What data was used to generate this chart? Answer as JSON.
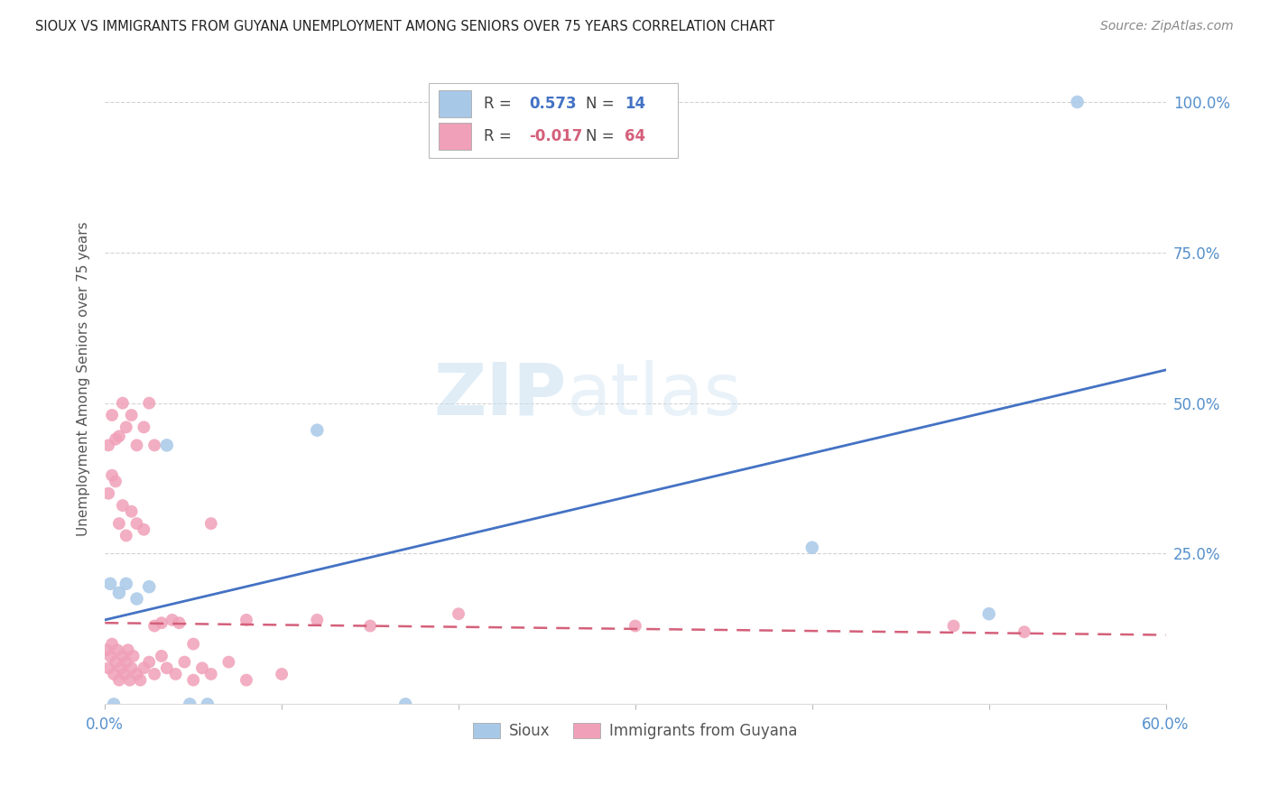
{
  "title": "SIOUX VS IMMIGRANTS FROM GUYANA UNEMPLOYMENT AMONG SENIORS OVER 75 YEARS CORRELATION CHART",
  "source": "Source: ZipAtlas.com",
  "ylabel": "Unemployment Among Seniors over 75 years",
  "xlabel": "",
  "watermark_zip": "ZIP",
  "watermark_atlas": "atlas",
  "xlim": [
    0.0,
    0.6
  ],
  "ylim": [
    0.0,
    1.08
  ],
  "xtick_vals": [
    0.0,
    0.1,
    0.2,
    0.3,
    0.4,
    0.5,
    0.6
  ],
  "xtick_labels": [
    "0.0%",
    "",
    "",
    "",
    "",
    "",
    "60.0%"
  ],
  "ytick_vals": [
    0.0,
    0.25,
    0.5,
    0.75,
    1.0
  ],
  "ytick_labels": [
    "",
    "25.0%",
    "50.0%",
    "75.0%",
    "100.0%"
  ],
  "sioux_R": 0.573,
  "sioux_N": 14,
  "guyana_R": -0.017,
  "guyana_N": 64,
  "sioux_color": "#A8C8E8",
  "guyana_color": "#F0A0B8",
  "line_sioux_color": "#4472C4",
  "line_guyana_color": "#D4607A",
  "sioux_line_start_y": 0.14,
  "sioux_line_end_y": 0.555,
  "guyana_line_start_y": 0.135,
  "guyana_line_end_y": 0.115,
  "background_color": "#FFFFFF",
  "grid_color": "#C8C8C8",
  "tick_color": "#5590CC",
  "figsize": [
    14.06,
    8.92
  ],
  "dpi": 100,
  "sioux_pts_x": [
    0.003,
    0.008,
    0.012,
    0.018,
    0.025,
    0.035,
    0.048,
    0.058,
    0.12,
    0.17,
    0.4,
    0.5,
    0.005,
    0.55
  ],
  "sioux_pts_y": [
    0.2,
    0.185,
    0.2,
    0.175,
    0.195,
    0.43,
    0.0,
    0.0,
    0.455,
    0.0,
    0.26,
    0.15,
    0.0,
    1.0
  ],
  "guyana_high_x": [
    0.002,
    0.004,
    0.006,
    0.008,
    0.01,
    0.012,
    0.015,
    0.018,
    0.022,
    0.025,
    0.028
  ],
  "guyana_high_y": [
    0.43,
    0.48,
    0.44,
    0.445,
    0.5,
    0.46,
    0.48,
    0.43,
    0.46,
    0.5,
    0.43
  ],
  "guyana_mid_x": [
    0.002,
    0.004,
    0.006,
    0.008,
    0.01,
    0.012,
    0.015,
    0.018,
    0.022,
    0.028,
    0.032,
    0.038,
    0.042,
    0.05,
    0.06,
    0.08,
    0.12,
    0.15,
    0.2,
    0.3,
    0.48,
    0.52
  ],
  "guyana_mid_y": [
    0.35,
    0.38,
    0.37,
    0.3,
    0.33,
    0.28,
    0.32,
    0.3,
    0.29,
    0.13,
    0.135,
    0.14,
    0.135,
    0.1,
    0.3,
    0.14,
    0.14,
    0.13,
    0.15,
    0.13,
    0.13,
    0.12
  ],
  "guyana_low_x": [
    0.001,
    0.002,
    0.003,
    0.004,
    0.005,
    0.006,
    0.007,
    0.008,
    0.009,
    0.01,
    0.011,
    0.012,
    0.013,
    0.014,
    0.015,
    0.016,
    0.018,
    0.02,
    0.022,
    0.025,
    0.028,
    0.032,
    0.035,
    0.04,
    0.045,
    0.05,
    0.055,
    0.06,
    0.07,
    0.08,
    0.1
  ],
  "guyana_low_y": [
    0.09,
    0.06,
    0.08,
    0.1,
    0.05,
    0.07,
    0.09,
    0.04,
    0.06,
    0.08,
    0.05,
    0.07,
    0.09,
    0.04,
    0.06,
    0.08,
    0.05,
    0.04,
    0.06,
    0.07,
    0.05,
    0.08,
    0.06,
    0.05,
    0.07,
    0.04,
    0.06,
    0.05,
    0.07,
    0.04,
    0.05
  ]
}
